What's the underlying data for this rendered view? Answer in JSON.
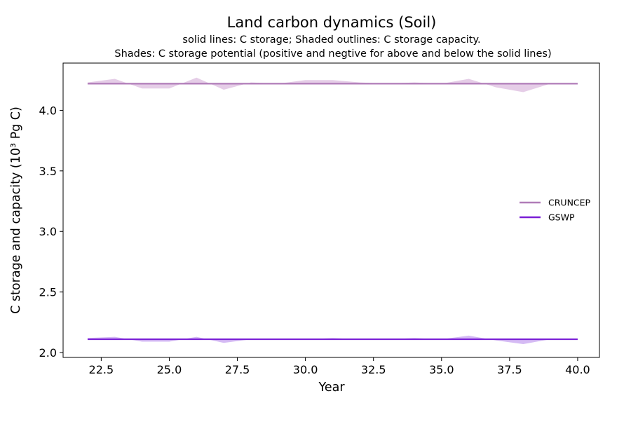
{
  "chart_data": {
    "type": "line",
    "title": "Land carbon dynamics (Soil)",
    "subtitle_lines": [
      "solid lines: C storage; Shaded outlines: C storage capacity.",
      "Shades: C storage potential (positive and negtive for above and below the solid lines)"
    ],
    "xlabel": "Year",
    "ylabel": "C storage and capacity (10³ Pg C)",
    "xlim": [
      21.1,
      40.8
    ],
    "ylim": [
      1.96,
      4.39
    ],
    "xticks": [
      22.5,
      25.0,
      27.5,
      30.0,
      32.5,
      35.0,
      37.5,
      40.0
    ],
    "xtick_labels": [
      "22.5",
      "25.0",
      "27.5",
      "30.0",
      "32.5",
      "35.0",
      "37.5",
      "40.0"
    ],
    "yticks": [
      2.0,
      2.5,
      3.0,
      3.5,
      4.0
    ],
    "ytick_labels": [
      "2.0",
      "2.5",
      "3.0",
      "3.5",
      "4.0"
    ],
    "grid": false,
    "legend_position": "center-right",
    "x": [
      22,
      23,
      24,
      25,
      26,
      27,
      28,
      29,
      30,
      31,
      32,
      33,
      34,
      35,
      36,
      37,
      38,
      39,
      40
    ],
    "series": [
      {
        "name": "CRUNCEP",
        "color": "#b07cb8",
        "shade_color": "#dcbcdf",
        "storage": [
          4.22,
          4.22,
          4.22,
          4.22,
          4.22,
          4.22,
          4.22,
          4.22,
          4.22,
          4.22,
          4.22,
          4.22,
          4.22,
          4.22,
          4.22,
          4.22,
          4.22,
          4.22,
          4.22
        ],
        "capacity": [
          4.23,
          4.26,
          4.18,
          4.18,
          4.27,
          4.17,
          4.23,
          4.22,
          4.25,
          4.25,
          4.23,
          4.22,
          4.23,
          4.22,
          4.26,
          4.19,
          4.15,
          4.22,
          4.22
        ]
      },
      {
        "name": "GSWP",
        "color": "#7a1fd6",
        "shade_color": "#c7a4f0",
        "storage": [
          2.11,
          2.11,
          2.11,
          2.11,
          2.11,
          2.11,
          2.11,
          2.11,
          2.11,
          2.11,
          2.11,
          2.11,
          2.11,
          2.11,
          2.11,
          2.11,
          2.11,
          2.11,
          2.11
        ],
        "capacity": [
          2.12,
          2.13,
          2.09,
          2.09,
          2.13,
          2.08,
          2.11,
          2.11,
          2.11,
          2.12,
          2.11,
          2.11,
          2.12,
          2.11,
          2.14,
          2.1,
          2.07,
          2.11,
          2.11
        ]
      }
    ]
  }
}
